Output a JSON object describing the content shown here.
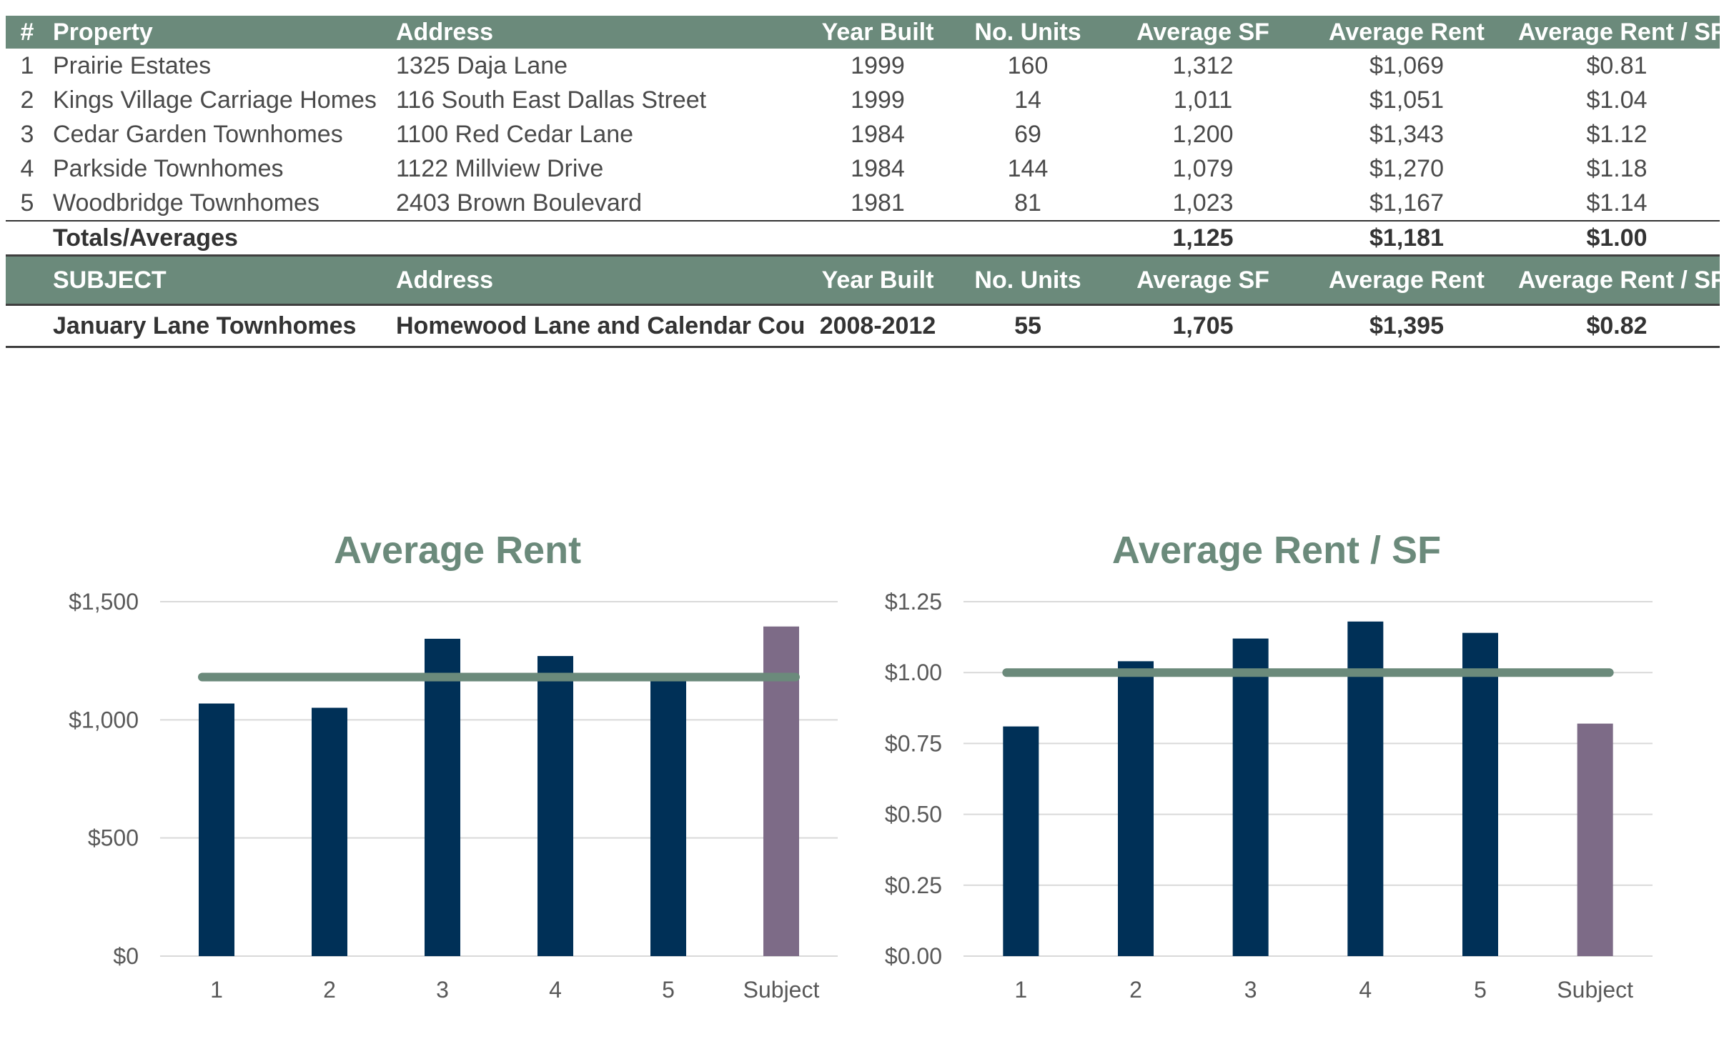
{
  "table": {
    "columns": [
      "#",
      "Property",
      "Address",
      "Year Built",
      "No. Units",
      "Average SF",
      "Average Rent",
      "Average Rent / SF"
    ],
    "rows": [
      {
        "num": "1",
        "property": "Prairie Estates",
        "address": "1325 Daja Lane",
        "year": "1999",
        "units": "160",
        "sf": "1,312",
        "rent": "$1,069",
        "rent_sf": "$0.81"
      },
      {
        "num": "2",
        "property": "Kings Village Carriage Homes",
        "address": "116 South East Dallas Street",
        "year": "1999",
        "units": "14",
        "sf": "1,011",
        "rent": "$1,051",
        "rent_sf": "$1.04"
      },
      {
        "num": "3",
        "property": "Cedar Garden Townhomes",
        "address": "1100 Red Cedar Lane",
        "year": "1984",
        "units": "69",
        "sf": "1,200",
        "rent": "$1,343",
        "rent_sf": "$1.12"
      },
      {
        "num": "4",
        "property": "Parkside Townhomes",
        "address": "1122 Millview Drive",
        "year": "1984",
        "units": "144",
        "sf": "1,079",
        "rent": "$1,270",
        "rent_sf": "$1.18"
      },
      {
        "num": "5",
        "property": "Woodbridge Townhomes",
        "address": "2403 Brown Boulevard",
        "year": "1981",
        "units": "81",
        "sf": "1,023",
        "rent": "$1,167",
        "rent_sf": "$1.14"
      }
    ],
    "totals": {
      "label": "Totals/Averages",
      "sf": "1,125",
      "rent": "$1,181",
      "rent_sf": "$1.00"
    },
    "subject_columns": [
      "SUBJECT",
      "Address",
      "Year Built",
      "No. Units",
      "Average SF",
      "Average Rent",
      "Average Rent / SF"
    ],
    "subject": {
      "property": "January Lane Townhomes",
      "address": "Homewood Lane and Calendar Court",
      "year": "2008-2012",
      "units": "55",
      "sf": "1,705",
      "rent": "$1,395",
      "rent_sf": "$0.82"
    }
  },
  "colors": {
    "header_bg": "#6b8a7b",
    "bar": "#003057",
    "subject_bar": "#7d6b87",
    "avg_line": "#6b8a7b",
    "grid": "#d9d9d9"
  },
  "chart_data": [
    {
      "type": "bar",
      "title": "Average Rent",
      "categories": [
        "1",
        "2",
        "3",
        "4",
        "5",
        "Subject"
      ],
      "values": [
        1069,
        1051,
        1343,
        1270,
        1167,
        1395
      ],
      "average": 1181,
      "ylim": [
        0,
        1500
      ],
      "yticks": [
        0,
        500,
        1000,
        1500
      ],
      "ytick_labels": [
        "$0",
        "$500",
        "$1,000",
        "$1,500"
      ],
      "xlabel": "",
      "ylabel": "",
      "grid": true
    },
    {
      "type": "bar",
      "title": "Average Rent / SF",
      "categories": [
        "1",
        "2",
        "3",
        "4",
        "5",
        "Subject"
      ],
      "values": [
        0.81,
        1.04,
        1.12,
        1.18,
        1.14,
        0.82
      ],
      "average": 1.0,
      "ylim": [
        0,
        1.25
      ],
      "yticks": [
        0,
        0.25,
        0.5,
        0.75,
        1.0,
        1.25
      ],
      "ytick_labels": [
        "$0.00",
        "$0.25",
        "$0.50",
        "$0.75",
        "$1.00",
        "$1.25"
      ],
      "xlabel": "",
      "ylabel": "",
      "grid": true
    }
  ]
}
